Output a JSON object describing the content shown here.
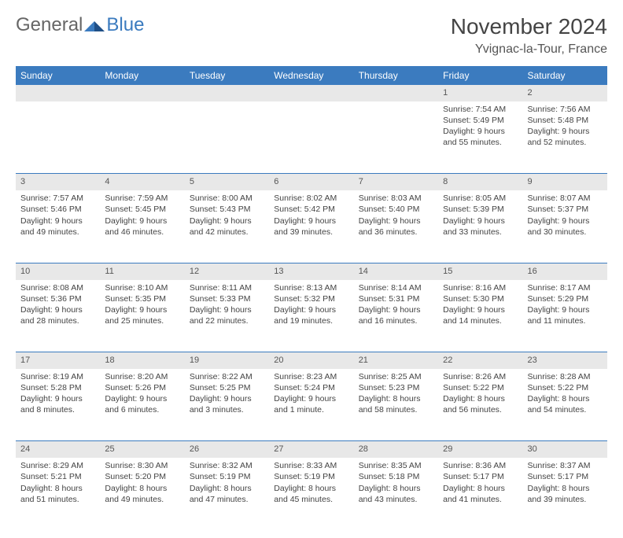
{
  "logo": {
    "general": "General",
    "blue": "Blue"
  },
  "title": "November 2024",
  "location": "Yvignac-la-Tour, France",
  "colors": {
    "header_bg": "#3b7bbf",
    "header_text": "#ffffff",
    "daynum_bg": "#e8e8e8",
    "text": "#444444",
    "border": "#3b7bbf"
  },
  "weekdays": [
    "Sunday",
    "Monday",
    "Tuesday",
    "Wednesday",
    "Thursday",
    "Friday",
    "Saturday"
  ],
  "weeks": [
    [
      null,
      null,
      null,
      null,
      null,
      {
        "n": "1",
        "sr": "Sunrise: 7:54 AM",
        "ss": "Sunset: 5:49 PM",
        "dl": "Daylight: 9 hours and 55 minutes."
      },
      {
        "n": "2",
        "sr": "Sunrise: 7:56 AM",
        "ss": "Sunset: 5:48 PM",
        "dl": "Daylight: 9 hours and 52 minutes."
      }
    ],
    [
      {
        "n": "3",
        "sr": "Sunrise: 7:57 AM",
        "ss": "Sunset: 5:46 PM",
        "dl": "Daylight: 9 hours and 49 minutes."
      },
      {
        "n": "4",
        "sr": "Sunrise: 7:59 AM",
        "ss": "Sunset: 5:45 PM",
        "dl": "Daylight: 9 hours and 46 minutes."
      },
      {
        "n": "5",
        "sr": "Sunrise: 8:00 AM",
        "ss": "Sunset: 5:43 PM",
        "dl": "Daylight: 9 hours and 42 minutes."
      },
      {
        "n": "6",
        "sr": "Sunrise: 8:02 AM",
        "ss": "Sunset: 5:42 PM",
        "dl": "Daylight: 9 hours and 39 minutes."
      },
      {
        "n": "7",
        "sr": "Sunrise: 8:03 AM",
        "ss": "Sunset: 5:40 PM",
        "dl": "Daylight: 9 hours and 36 minutes."
      },
      {
        "n": "8",
        "sr": "Sunrise: 8:05 AM",
        "ss": "Sunset: 5:39 PM",
        "dl": "Daylight: 9 hours and 33 minutes."
      },
      {
        "n": "9",
        "sr": "Sunrise: 8:07 AM",
        "ss": "Sunset: 5:37 PM",
        "dl": "Daylight: 9 hours and 30 minutes."
      }
    ],
    [
      {
        "n": "10",
        "sr": "Sunrise: 8:08 AM",
        "ss": "Sunset: 5:36 PM",
        "dl": "Daylight: 9 hours and 28 minutes."
      },
      {
        "n": "11",
        "sr": "Sunrise: 8:10 AM",
        "ss": "Sunset: 5:35 PM",
        "dl": "Daylight: 9 hours and 25 minutes."
      },
      {
        "n": "12",
        "sr": "Sunrise: 8:11 AM",
        "ss": "Sunset: 5:33 PM",
        "dl": "Daylight: 9 hours and 22 minutes."
      },
      {
        "n": "13",
        "sr": "Sunrise: 8:13 AM",
        "ss": "Sunset: 5:32 PM",
        "dl": "Daylight: 9 hours and 19 minutes."
      },
      {
        "n": "14",
        "sr": "Sunrise: 8:14 AM",
        "ss": "Sunset: 5:31 PM",
        "dl": "Daylight: 9 hours and 16 minutes."
      },
      {
        "n": "15",
        "sr": "Sunrise: 8:16 AM",
        "ss": "Sunset: 5:30 PM",
        "dl": "Daylight: 9 hours and 14 minutes."
      },
      {
        "n": "16",
        "sr": "Sunrise: 8:17 AM",
        "ss": "Sunset: 5:29 PM",
        "dl": "Daylight: 9 hours and 11 minutes."
      }
    ],
    [
      {
        "n": "17",
        "sr": "Sunrise: 8:19 AM",
        "ss": "Sunset: 5:28 PM",
        "dl": "Daylight: 9 hours and 8 minutes."
      },
      {
        "n": "18",
        "sr": "Sunrise: 8:20 AM",
        "ss": "Sunset: 5:26 PM",
        "dl": "Daylight: 9 hours and 6 minutes."
      },
      {
        "n": "19",
        "sr": "Sunrise: 8:22 AM",
        "ss": "Sunset: 5:25 PM",
        "dl": "Daylight: 9 hours and 3 minutes."
      },
      {
        "n": "20",
        "sr": "Sunrise: 8:23 AM",
        "ss": "Sunset: 5:24 PM",
        "dl": "Daylight: 9 hours and 1 minute."
      },
      {
        "n": "21",
        "sr": "Sunrise: 8:25 AM",
        "ss": "Sunset: 5:23 PM",
        "dl": "Daylight: 8 hours and 58 minutes."
      },
      {
        "n": "22",
        "sr": "Sunrise: 8:26 AM",
        "ss": "Sunset: 5:22 PM",
        "dl": "Daylight: 8 hours and 56 minutes."
      },
      {
        "n": "23",
        "sr": "Sunrise: 8:28 AM",
        "ss": "Sunset: 5:22 PM",
        "dl": "Daylight: 8 hours and 54 minutes."
      }
    ],
    [
      {
        "n": "24",
        "sr": "Sunrise: 8:29 AM",
        "ss": "Sunset: 5:21 PM",
        "dl": "Daylight: 8 hours and 51 minutes."
      },
      {
        "n": "25",
        "sr": "Sunrise: 8:30 AM",
        "ss": "Sunset: 5:20 PM",
        "dl": "Daylight: 8 hours and 49 minutes."
      },
      {
        "n": "26",
        "sr": "Sunrise: 8:32 AM",
        "ss": "Sunset: 5:19 PM",
        "dl": "Daylight: 8 hours and 47 minutes."
      },
      {
        "n": "27",
        "sr": "Sunrise: 8:33 AM",
        "ss": "Sunset: 5:19 PM",
        "dl": "Daylight: 8 hours and 45 minutes."
      },
      {
        "n": "28",
        "sr": "Sunrise: 8:35 AM",
        "ss": "Sunset: 5:18 PM",
        "dl": "Daylight: 8 hours and 43 minutes."
      },
      {
        "n": "29",
        "sr": "Sunrise: 8:36 AM",
        "ss": "Sunset: 5:17 PM",
        "dl": "Daylight: 8 hours and 41 minutes."
      },
      {
        "n": "30",
        "sr": "Sunrise: 8:37 AM",
        "ss": "Sunset: 5:17 PM",
        "dl": "Daylight: 8 hours and 39 minutes."
      }
    ]
  ]
}
